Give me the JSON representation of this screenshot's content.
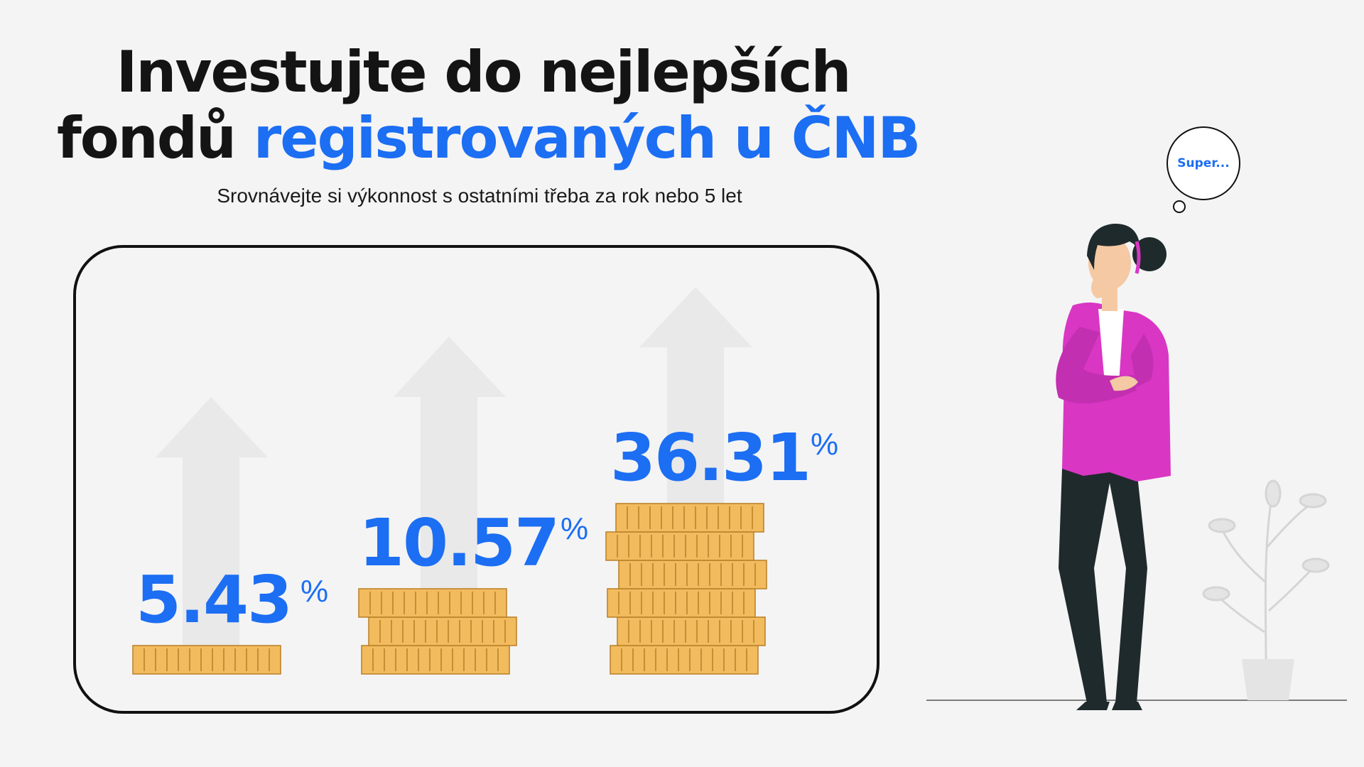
{
  "headline": {
    "line1": "Investujte do nejlepších",
    "line2_dark": "fondů ",
    "line2_accent": "registrovaných u ČNB"
  },
  "subtitle": "Srovnávejte si výkonnost s ostatními třeba za rok nebo 5 let",
  "stacks": [
    {
      "value": "5.43",
      "unit": "%",
      "coin_rows": 1
    },
    {
      "value": "10.57",
      "unit": "%",
      "coin_rows": 3
    },
    {
      "value": "36.31",
      "unit": "%",
      "coin_rows": 6
    }
  ],
  "thought_bubble": "Super...",
  "colors": {
    "accent": "#1c6ef3",
    "coin": "#f2bb5e",
    "coin_outline": "#b97e25",
    "jacket": "#d936c4",
    "pants": "#1f2a2c",
    "arrow_bg": "#e9e9e9"
  },
  "icons": [
    "growth-arrow-icon",
    "coin-stack-icon",
    "thinking-woman-illustration",
    "plant-icon"
  ]
}
